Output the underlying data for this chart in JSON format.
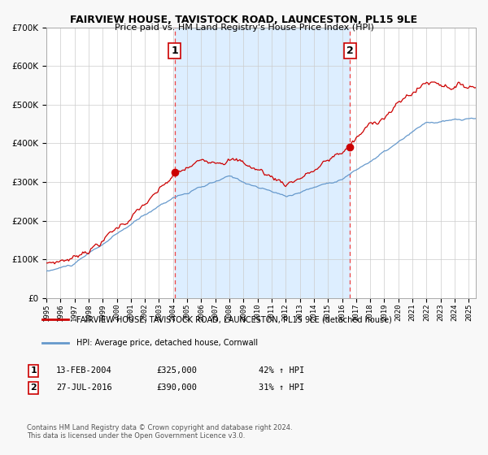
{
  "title_line1": "FAIRVIEW HOUSE, TAVISTOCK ROAD, LAUNCESTON, PL15 9LE",
  "title_line2": "Price paid vs. HM Land Registry's House Price Index (HPI)",
  "legend_label_red": "FAIRVIEW HOUSE, TAVISTOCK ROAD, LAUNCESTON, PL15 9LE (detached house)",
  "legend_label_blue": "HPI: Average price, detached house, Cornwall",
  "annotation1_label": "1",
  "annotation1_date": "13-FEB-2004",
  "annotation1_price": "£325,000",
  "annotation1_pct": "42% ↑ HPI",
  "annotation2_label": "2",
  "annotation2_date": "27-JUL-2016",
  "annotation2_price": "£390,000",
  "annotation2_pct": "31% ↑ HPI",
  "purchase1_x": 2004.12,
  "purchase1_y": 325000,
  "purchase2_x": 2016.57,
  "purchase2_y": 390000,
  "ylim": [
    0,
    700000
  ],
  "xlim": [
    1995,
    2025.5
  ],
  "shaded_start": 2004.12,
  "shaded_end": 2016.57,
  "fig_bg": "#f8f8f8",
  "plot_bg": "#ffffff",
  "grid_color": "#cccccc",
  "red_line_color": "#cc0000",
  "blue_line_color": "#6699cc",
  "dashed_line_color": "#ee4444",
  "shaded_color": "#ddeeff",
  "footer_text": "Contains HM Land Registry data © Crown copyright and database right 2024.\nThis data is licensed under the Open Government Licence v3.0."
}
